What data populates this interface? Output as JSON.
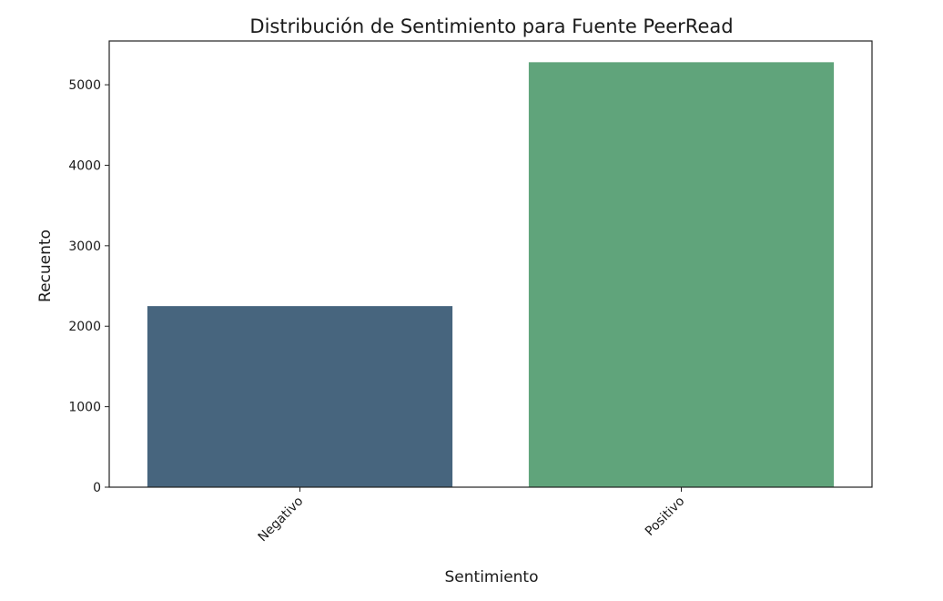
{
  "chart_data": {
    "type": "bar",
    "title": "Distribución de Sentimiento para Fuente PeerRead",
    "xlabel": "Sentimiento",
    "ylabel": "Recuento",
    "categories": [
      "Negativo",
      "Positivo"
    ],
    "values": [
      2250,
      5280
    ],
    "colors": [
      "#47657e",
      "#60a47b"
    ],
    "ylim": [
      0,
      5544
    ],
    "yticks": [
      0,
      1000,
      2000,
      3000,
      4000,
      5000
    ],
    "ytick_labels": [
      "0",
      "1000",
      "2000",
      "3000",
      "4000",
      "5000"
    ],
    "grid": false,
    "legend": false
  }
}
